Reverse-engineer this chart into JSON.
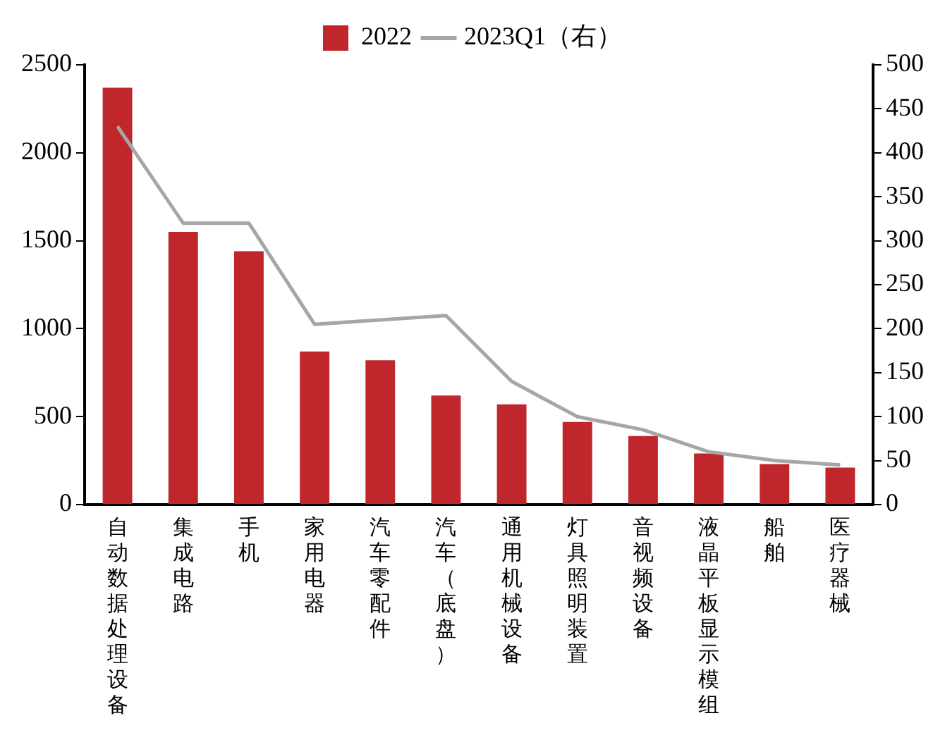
{
  "chart_data": {
    "type": "bar",
    "categories": [
      "自动数据处理设备",
      "集成电路",
      "手机",
      "家用电器",
      "汽车零配件",
      "汽车（底盘）",
      "通用机械设备",
      "灯具照明装置",
      "音视频设备",
      "液晶平板显示模组",
      "船舶",
      "医疗器械"
    ],
    "series": [
      {
        "name": "2022",
        "color": "#c0272d",
        "values": [
          2370,
          1550,
          1440,
          870,
          820,
          620,
          570,
          470,
          390,
          290,
          230,
          210
        ]
      },
      {
        "name": "2023Q1（右）",
        "type": "line",
        "axis": "y2",
        "color": "#a6a6a6",
        "values": [
          430,
          320,
          320,
          205,
          210,
          215,
          140,
          100,
          85,
          60,
          50,
          45
        ]
      }
    ],
    "ylim": [
      0,
      2500
    ],
    "yticks": [
      0,
      500,
      1000,
      1500,
      2000,
      2500
    ],
    "y2lim": [
      0,
      500
    ],
    "y2ticks": [
      0,
      50,
      100,
      150,
      200,
      250,
      300,
      350,
      400,
      450,
      500
    ],
    "legend": "top",
    "grid": false,
    "marker": "none",
    "line_style": "solid"
  }
}
